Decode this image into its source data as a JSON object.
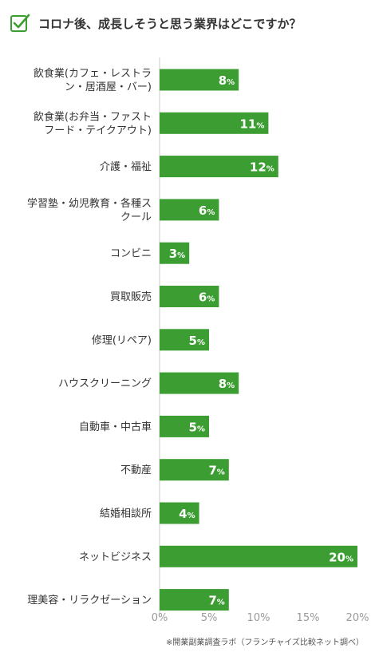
{
  "title": "コロナ後、成長しそうと思う業界はどこですか？",
  "source": "※開業副業調査ラボ（フランチャイズ比較ネット調べ）",
  "icons": {
    "title_icon": "checkbox-check-icon"
  },
  "colors": {
    "bar": "#3c9d32",
    "accent": "#3c9d32",
    "axis": "#cccccc",
    "tick_text": "#9a9a9a"
  },
  "chart_data": {
    "type": "bar",
    "orientation": "horizontal",
    "categories": [
      [
        "飲食業(カフェ・レストラ",
        "ン・居酒屋・バー)"
      ],
      [
        "飲食業(お弁当・ファスト",
        "フード・テイクアウト)"
      ],
      [
        "介護・福祉"
      ],
      [
        "学習塾・幼児教育・各種ス",
        "クール"
      ],
      [
        "コンビニ"
      ],
      [
        "買取販売"
      ],
      [
        "修理(リペア)"
      ],
      [
        "ハウスクリーニング"
      ],
      [
        "自動車・中古車"
      ],
      [
        "不動産"
      ],
      [
        "結婚相談所"
      ],
      [
        "ネットビジネス"
      ],
      [
        "理美容・リラクゼーション"
      ]
    ],
    "values": [
      8,
      11,
      12,
      6,
      3,
      6,
      5,
      8,
      5,
      7,
      4,
      20,
      7
    ],
    "value_suffix": "%",
    "xticks": [
      "0%",
      "5%",
      "10%",
      "15%",
      "20%"
    ],
    "xlim": [
      0,
      20
    ],
    "grid": false,
    "legend": "none"
  }
}
